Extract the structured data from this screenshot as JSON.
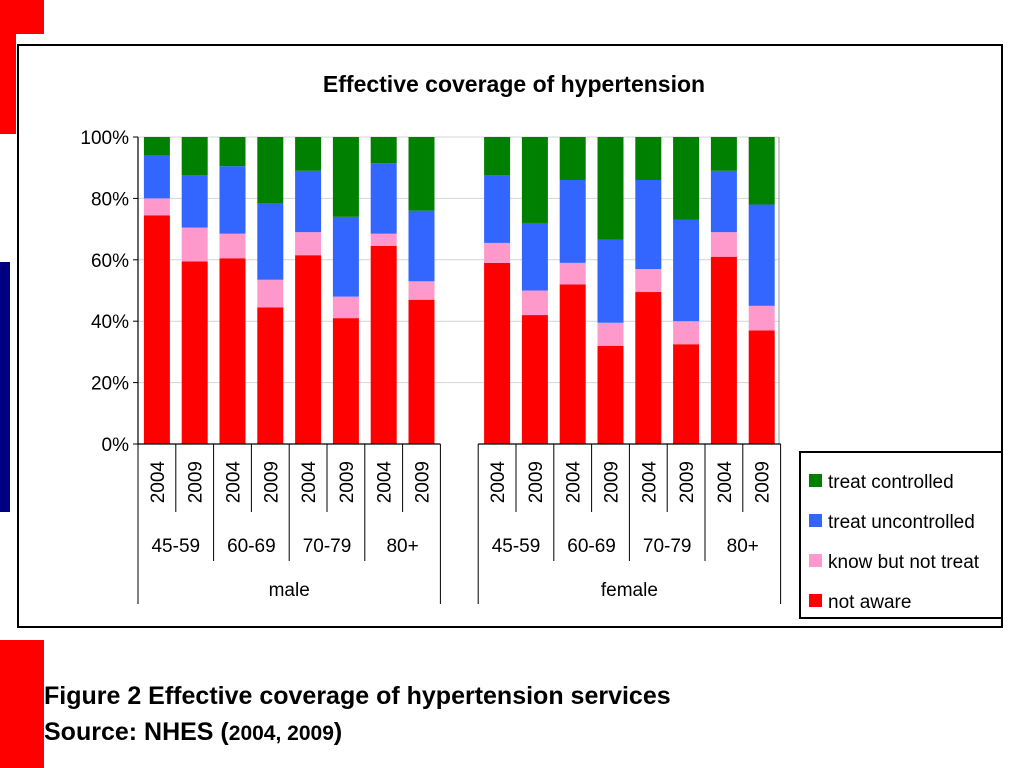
{
  "slide": {
    "caption_line1": "Figure 2 Effective coverage of hypertension services",
    "caption_line2_prefix": "Source: NHES (",
    "caption_line2_years": "2004, 2009",
    "caption_line2_suffix": ")",
    "colors": {
      "accent_red": "#ff0000",
      "accent_navy": "#000080"
    }
  },
  "chart_data": {
    "type": "bar",
    "stacked": true,
    "title": "Effective coverage of hypertension",
    "ylim": [
      0,
      100
    ],
    "yticks": [
      "0%",
      "20%",
      "40%",
      "60%",
      "80%",
      "100%"
    ],
    "grid": true,
    "legend_position": "bottom-right",
    "groups": [
      {
        "sex": "male",
        "age_groups": [
          {
            "label": "45-59",
            "years": [
              "2004",
              "2009"
            ]
          },
          {
            "label": "60-69",
            "years": [
              "2004",
              "2009"
            ]
          },
          {
            "label": "70-79",
            "years": [
              "2004",
              "2009"
            ]
          },
          {
            "label": "80+",
            "years": [
              "2004",
              "2009"
            ]
          }
        ]
      },
      {
        "sex": "female",
        "age_groups": [
          {
            "label": "45-59",
            "years": [
              "2004",
              "2009"
            ]
          },
          {
            "label": "60-69",
            "years": [
              "2004",
              "2009"
            ]
          },
          {
            "label": "70-79",
            "years": [
              "2004",
              "2009"
            ]
          },
          {
            "label": "80+",
            "years": [
              "2004",
              "2009"
            ]
          }
        ]
      }
    ],
    "series": [
      {
        "name": "not aware",
        "color": "#ff0000",
        "values": [
          74.5,
          59.5,
          60.5,
          44.5,
          61.5,
          41,
          64.5,
          47,
          59,
          42,
          52,
          32,
          49.5,
          32.5,
          61,
          37
        ]
      },
      {
        "name": "know but not treat",
        "color": "#ff99cc",
        "values": [
          5.5,
          11,
          8,
          9,
          7.5,
          7,
          4,
          6,
          6.5,
          8,
          7,
          7.5,
          7.5,
          7.5,
          8,
          8
        ]
      },
      {
        "name": "treat uncontrolled",
        "color": "#3366ff",
        "values": [
          14,
          17,
          22,
          25,
          20,
          26,
          23,
          23,
          22,
          22,
          27,
          27,
          29,
          33,
          20,
          33
        ]
      },
      {
        "name": "treat controlled",
        "color": "#008000",
        "values": [
          6,
          12.5,
          9.5,
          21.5,
          11,
          26,
          8.5,
          24,
          12.5,
          28,
          14,
          33.5,
          14,
          27,
          11,
          22
        ]
      }
    ],
    "legend_order": [
      "treat controlled",
      "treat uncontrolled",
      "know but not treat",
      "not aware"
    ]
  }
}
